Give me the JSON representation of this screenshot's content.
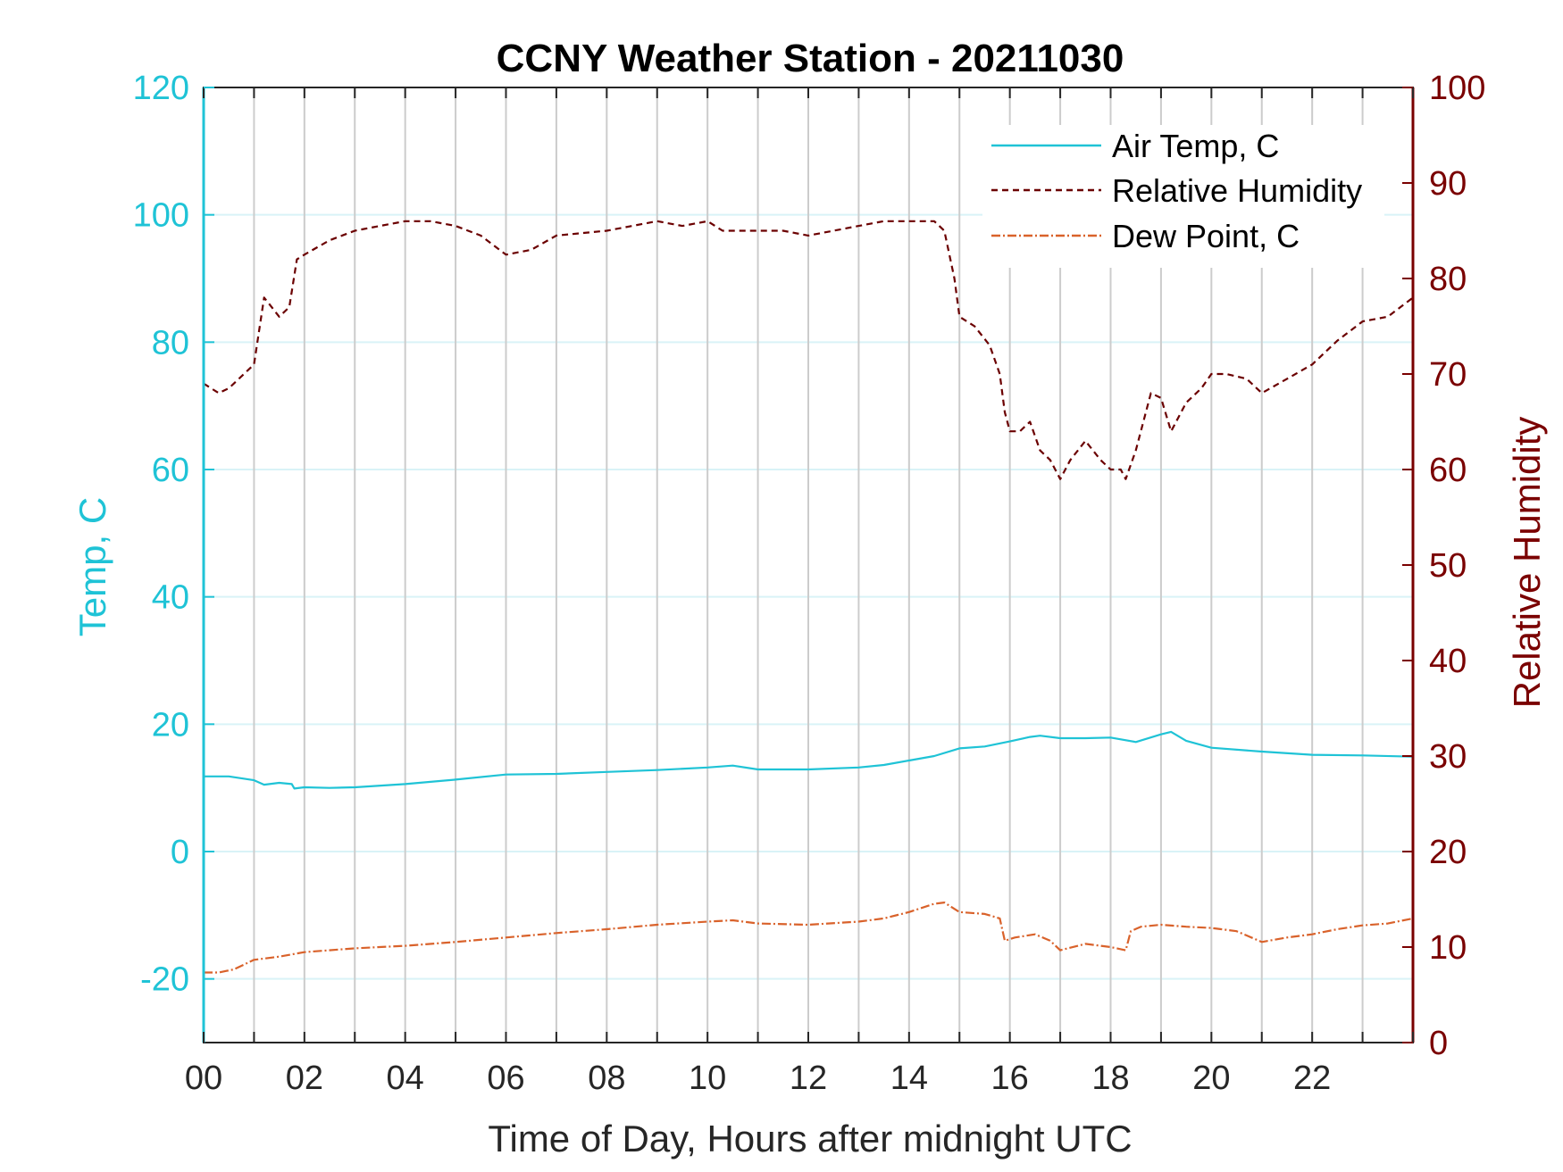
{
  "chart_data": {
    "type": "line",
    "title": "CCNY Weather Station - 20211030",
    "xlabel": "Time of Day, Hours after midnight UTC",
    "ylabel_left": "Temp, C",
    "ylabel_right": "Relative Humidity",
    "xlim": [
      0,
      24
    ],
    "ylim_left": [
      -30,
      120
    ],
    "ylim_right": [
      0,
      100
    ],
    "x_ticks": [
      0,
      2,
      4,
      6,
      8,
      10,
      12,
      14,
      16,
      18,
      20,
      22
    ],
    "x_tick_labels": [
      "00",
      "02",
      "04",
      "06",
      "08",
      "10",
      "12",
      "14",
      "16",
      "18",
      "20",
      "22"
    ],
    "y_left_ticks": [
      -20,
      0,
      20,
      40,
      60,
      80,
      100,
      120
    ],
    "y_left_tick_labels": [
      "-20",
      "0",
      "20",
      "40",
      "60",
      "80",
      "100",
      "120"
    ],
    "y_right_ticks": [
      0,
      10,
      20,
      30,
      40,
      50,
      60,
      70,
      80,
      90,
      100
    ],
    "y_right_tick_labels": [
      "0",
      "10",
      "20",
      "30",
      "40",
      "50",
      "60",
      "70",
      "80",
      "90",
      "100"
    ],
    "grid": true,
    "legend_position": "top-right",
    "colors": {
      "air_temp": "#1fc3d6",
      "humidity": "#6b0000",
      "dew_point": "#d9622b",
      "left_axis": "#1fc3d6",
      "right_axis": "#7a0000",
      "grid_vertical": "#cccccc",
      "grid_horizontal": "#d9f3f7"
    },
    "series": [
      {
        "name": "Air Temp, C",
        "axis": "left",
        "style": "solid",
        "x": [
          0,
          0.5,
          1.0,
          1.2,
          1.5,
          1.75,
          1.8,
          2.0,
          2.5,
          3.0,
          4.0,
          5.0,
          6.0,
          7.0,
          8.0,
          9.0,
          10.0,
          10.5,
          11.0,
          12.0,
          13.0,
          13.5,
          14.0,
          14.5,
          15.0,
          15.5,
          16.0,
          16.4,
          16.6,
          17.0,
          17.5,
          18.0,
          18.5,
          19.0,
          19.2,
          19.5,
          20.0,
          21.0,
          22.0,
          23.0,
          24.0
        ],
        "y": [
          11.8,
          11.8,
          11.2,
          10.5,
          10.8,
          10.6,
          9.9,
          10.1,
          10.0,
          10.1,
          10.6,
          11.3,
          12.1,
          12.2,
          12.5,
          12.8,
          13.2,
          13.5,
          12.9,
          12.9,
          13.2,
          13.6,
          14.3,
          15.0,
          16.2,
          16.5,
          17.3,
          18.0,
          18.2,
          17.8,
          17.8,
          17.9,
          17.2,
          18.4,
          18.8,
          17.4,
          16.3,
          15.7,
          15.2,
          15.1,
          14.9
        ]
      },
      {
        "name": "Relative Humidity",
        "axis": "right",
        "style": "dashed",
        "x": [
          0,
          0.3,
          0.5,
          0.8,
          1.0,
          1.2,
          1.35,
          1.5,
          1.7,
          1.85,
          2.0,
          2.5,
          3.0,
          3.5,
          4.0,
          4.5,
          5.0,
          5.5,
          6.0,
          6.5,
          7.0,
          8.0,
          9.0,
          9.5,
          10.0,
          10.3,
          11.0,
          11.5,
          12.0,
          13.0,
          13.5,
          14.0,
          14.5,
          14.7,
          14.9,
          15.0,
          15.3,
          15.6,
          15.8,
          15.9,
          16.0,
          16.2,
          16.4,
          16.6,
          16.8,
          17.0,
          17.2,
          17.5,
          17.8,
          18.0,
          18.2,
          18.3,
          18.5,
          18.8,
          19.0,
          19.2,
          19.5,
          19.8,
          20.0,
          20.3,
          20.7,
          21.0,
          21.5,
          22.0,
          22.5,
          23.0,
          23.5,
          24.0
        ],
        "y": [
          69,
          68,
          68.5,
          70,
          71,
          78,
          77,
          76,
          77,
          82,
          82.5,
          84,
          85,
          85.5,
          86,
          86,
          85.5,
          84.5,
          82.5,
          83,
          84.5,
          85,
          86,
          85.5,
          86,
          85,
          85,
          85,
          84.5,
          85.5,
          86,
          86,
          86,
          85,
          80,
          76,
          75,
          73,
          70,
          66,
          64,
          64,
          65,
          62,
          61,
          59,
          61,
          63,
          61,
          60,
          60,
          59,
          62,
          68,
          67.5,
          64,
          67,
          68.5,
          70,
          70,
          69.5,
          68,
          69.5,
          71,
          73.5,
          75.5,
          76,
          78
        ]
      },
      {
        "name": "Dew Point, C",
        "axis": "left",
        "style": "dashdot",
        "x": [
          0,
          0.3,
          0.6,
          1.0,
          1.5,
          2.0,
          3.0,
          4.0,
          5.0,
          6.0,
          7.0,
          8.0,
          9.0,
          10.0,
          10.5,
          11.0,
          12.0,
          13.0,
          13.5,
          14.0,
          14.5,
          14.7,
          15.0,
          15.5,
          15.8,
          15.9,
          16.1,
          16.5,
          16.8,
          17.0,
          17.5,
          18.0,
          18.3,
          18.4,
          18.6,
          19.0,
          19.5,
          20.0,
          20.5,
          21.0,
          21.5,
          22.0,
          22.5,
          23.0,
          23.5,
          24.0
        ],
        "y": [
          -19,
          -19,
          -18.5,
          -17,
          -16.5,
          -15.8,
          -15.2,
          -14.8,
          -14.2,
          -13.5,
          -12.8,
          -12.2,
          -11.5,
          -11,
          -10.8,
          -11.3,
          -11.5,
          -11,
          -10.5,
          -9.5,
          -8.2,
          -8,
          -9.5,
          -9.8,
          -10.5,
          -14,
          -13.5,
          -13,
          -14,
          -15.5,
          -14.5,
          -15,
          -15.5,
          -12.5,
          -11.8,
          -11.5,
          -11.8,
          -12,
          -12.5,
          -14.2,
          -13.5,
          -13,
          -12.2,
          -11.6,
          -11.3,
          -10.5
        ]
      }
    ]
  }
}
